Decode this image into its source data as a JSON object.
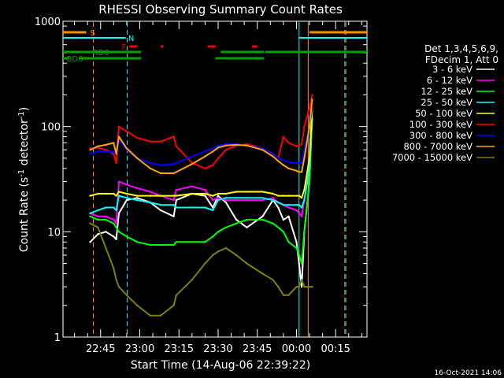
{
  "chart_data": {
    "type": "line",
    "title": "RHESSI Observing Summary Count Rates",
    "xlabel": "Start Time (14-Aug-06 22:39:22)",
    "ylabel_main": "Count Rate (s",
    "ylabel_sup1": "-1",
    "ylabel_mid": " detector",
    "ylabel_sup2": "-1",
    "ylabel_end": ")",
    "y_scale": "log",
    "ylim": [
      1,
      1000
    ],
    "xlim_min": [
      -14.4,
      102
    ],
    "x_ticks": [
      {
        "t": 0,
        "label": "22:45"
      },
      {
        "t": 15,
        "label": "23:00"
      },
      {
        "t": 30,
        "label": "23:15"
      },
      {
        "t": 45,
        "label": "23:30"
      },
      {
        "t": 60,
        "label": "23:45"
      },
      {
        "t": 75,
        "label": "00:00"
      },
      {
        "t": 90,
        "label": "00:15"
      }
    ],
    "y_ticks": [
      {
        "v": 1,
        "label": "1"
      },
      {
        "v": 10,
        "label": "10"
      },
      {
        "v": 100,
        "label": "100"
      },
      {
        "v": 1000,
        "label": "1000"
      }
    ],
    "legend_header": [
      "Det 1,3,4,5,6,9,",
      "FDecim 1, Att 0"
    ],
    "legend_placement": "right",
    "series": [
      {
        "name": "3 - 6 keV",
        "color": "#ffffff",
        "points": [
          [
            -4,
            8
          ],
          [
            -1,
            9.5
          ],
          [
            2,
            10
          ],
          [
            5,
            9
          ],
          [
            6,
            8.5
          ],
          [
            7,
            15
          ],
          [
            10,
            20
          ],
          [
            14,
            21
          ],
          [
            19,
            19
          ],
          [
            23,
            16
          ],
          [
            28,
            14
          ],
          [
            29,
            20
          ],
          [
            35,
            23
          ],
          [
            40,
            22
          ],
          [
            43,
            17
          ],
          [
            45,
            22
          ],
          [
            48,
            19
          ],
          [
            52,
            13
          ],
          [
            56,
            11
          ],
          [
            62,
            14
          ],
          [
            66,
            20
          ],
          [
            68,
            17
          ],
          [
            70,
            13
          ],
          [
            72,
            14
          ],
          [
            75,
            8
          ],
          [
            76,
            5
          ],
          [
            77,
            3
          ],
          [
            78,
            10
          ],
          [
            80,
            30
          ],
          [
            81,
            150
          ]
        ]
      },
      {
        "name": "6 - 12 keV",
        "color": "#ff00ff",
        "points": [
          [
            -4,
            15
          ],
          [
            -1,
            14
          ],
          [
            2,
            14
          ],
          [
            5,
            13
          ],
          [
            6,
            12
          ],
          [
            7,
            30
          ],
          [
            10,
            28
          ],
          [
            14,
            26
          ],
          [
            19,
            24
          ],
          [
            23,
            22
          ],
          [
            28,
            20
          ],
          [
            29,
            25
          ],
          [
            35,
            27
          ],
          [
            40,
            25
          ],
          [
            43,
            20
          ],
          [
            45,
            21
          ],
          [
            48,
            20
          ],
          [
            52,
            20
          ],
          [
            56,
            20
          ],
          [
            62,
            20
          ],
          [
            66,
            21
          ],
          [
            68,
            19
          ],
          [
            70,
            18
          ],
          [
            72,
            17
          ],
          [
            75,
            16
          ],
          [
            76,
            15
          ],
          [
            77,
            14
          ],
          [
            78,
            20
          ],
          [
            80,
            40
          ],
          [
            81,
            150
          ]
        ]
      },
      {
        "name": "12 - 25 keV",
        "color": "#00ff00",
        "points": [
          [
            -4,
            14
          ],
          [
            -1,
            13
          ],
          [
            2,
            13
          ],
          [
            5,
            12
          ],
          [
            6,
            11
          ],
          [
            7,
            10
          ],
          [
            10,
            9
          ],
          [
            14,
            8
          ],
          [
            19,
            7.5
          ],
          [
            23,
            7.5
          ],
          [
            28,
            7.5
          ],
          [
            29,
            8
          ],
          [
            35,
            8
          ],
          [
            40,
            8
          ],
          [
            43,
            9
          ],
          [
            45,
            10
          ],
          [
            48,
            11
          ],
          [
            52,
            12
          ],
          [
            56,
            13
          ],
          [
            62,
            13
          ],
          [
            66,
            12
          ],
          [
            68,
            11
          ],
          [
            70,
            10
          ],
          [
            72,
            8
          ],
          [
            75,
            7
          ],
          [
            76,
            6
          ],
          [
            77,
            5
          ],
          [
            78,
            10
          ],
          [
            80,
            30
          ],
          [
            81,
            120
          ]
        ]
      },
      {
        "name": "25 - 50 keV",
        "color": "#00ffff",
        "points": [
          [
            -4,
            15
          ],
          [
            -1,
            16
          ],
          [
            2,
            17
          ],
          [
            5,
            17
          ],
          [
            6,
            16
          ],
          [
            7,
            22
          ],
          [
            10,
            21
          ],
          [
            14,
            20
          ],
          [
            19,
            19
          ],
          [
            23,
            18
          ],
          [
            28,
            18
          ],
          [
            29,
            17
          ],
          [
            35,
            17
          ],
          [
            40,
            17
          ],
          [
            43,
            16
          ],
          [
            45,
            20
          ],
          [
            48,
            21
          ],
          [
            52,
            21
          ],
          [
            56,
            21
          ],
          [
            62,
            21
          ],
          [
            66,
            20
          ],
          [
            68,
            19
          ],
          [
            70,
            18
          ],
          [
            72,
            18
          ],
          [
            75,
            18
          ],
          [
            76,
            18
          ],
          [
            77,
            17
          ],
          [
            78,
            20
          ],
          [
            80,
            40
          ],
          [
            81,
            120
          ]
        ]
      },
      {
        "name": "50 - 100 keV",
        "color": "#ffff00",
        "points": [
          [
            -4,
            22
          ],
          [
            -1,
            23
          ],
          [
            2,
            23
          ],
          [
            5,
            23
          ],
          [
            6,
            22
          ],
          [
            7,
            24
          ],
          [
            10,
            23
          ],
          [
            14,
            22
          ],
          [
            19,
            22
          ],
          [
            23,
            22
          ],
          [
            28,
            22
          ],
          [
            29,
            22
          ],
          [
            35,
            23
          ],
          [
            40,
            23
          ],
          [
            43,
            22
          ],
          [
            45,
            23
          ],
          [
            48,
            23
          ],
          [
            52,
            24
          ],
          [
            56,
            24
          ],
          [
            62,
            24
          ],
          [
            66,
            23
          ],
          [
            68,
            22
          ],
          [
            70,
            22
          ],
          [
            72,
            22
          ],
          [
            75,
            22
          ],
          [
            76,
            22
          ],
          [
            77,
            21
          ],
          [
            78,
            25
          ],
          [
            80,
            50
          ],
          [
            81,
            150
          ]
        ]
      },
      {
        "name": "100 - 300 keV",
        "color": "#ff0000",
        "points": [
          [
            -4,
            62
          ],
          [
            -1,
            63
          ],
          [
            2,
            60
          ],
          [
            5,
            55
          ],
          [
            6,
            45
          ],
          [
            7,
            100
          ],
          [
            10,
            90
          ],
          [
            14,
            78
          ],
          [
            19,
            72
          ],
          [
            23,
            72
          ],
          [
            28,
            80
          ],
          [
            29,
            65
          ],
          [
            35,
            45
          ],
          [
            40,
            40
          ],
          [
            43,
            43
          ],
          [
            45,
            50
          ],
          [
            48,
            60
          ],
          [
            52,
            66
          ],
          [
            56,
            68
          ],
          [
            62,
            62
          ],
          [
            66,
            55
          ],
          [
            68,
            50
          ],
          [
            70,
            80
          ],
          [
            72,
            70
          ],
          [
            75,
            65
          ],
          [
            76,
            66
          ],
          [
            77,
            68
          ],
          [
            78,
            100
          ],
          [
            80,
            150
          ],
          [
            81,
            200
          ]
        ]
      },
      {
        "name": "300 - 800 keV",
        "color": "#0000ff",
        "points": [
          [
            -4,
            55
          ],
          [
            -1,
            58
          ],
          [
            2,
            58
          ],
          [
            5,
            57
          ],
          [
            6,
            55
          ],
          [
            7,
            75
          ],
          [
            10,
            60
          ],
          [
            14,
            50
          ],
          [
            19,
            45
          ],
          [
            23,
            43
          ],
          [
            28,
            44
          ],
          [
            29,
            45
          ],
          [
            35,
            52
          ],
          [
            40,
            58
          ],
          [
            43,
            62
          ],
          [
            45,
            66
          ],
          [
            48,
            68
          ],
          [
            52,
            68
          ],
          [
            56,
            66
          ],
          [
            62,
            62
          ],
          [
            66,
            55
          ],
          [
            68,
            50
          ],
          [
            70,
            48
          ],
          [
            72,
            46
          ],
          [
            75,
            45
          ],
          [
            76,
            45
          ],
          [
            77,
            45
          ],
          [
            78,
            60
          ],
          [
            80,
            100
          ],
          [
            81,
            150
          ]
        ]
      },
      {
        "name": "800 - 7000 keV",
        "color": "#ffa500",
        "points": [
          [
            -4,
            60
          ],
          [
            -1,
            65
          ],
          [
            2,
            67
          ],
          [
            5,
            70
          ],
          [
            6,
            55
          ],
          [
            7,
            80
          ],
          [
            10,
            62
          ],
          [
            14,
            50
          ],
          [
            19,
            40
          ],
          [
            23,
            36
          ],
          [
            28,
            36
          ],
          [
            29,
            37
          ],
          [
            35,
            44
          ],
          [
            40,
            52
          ],
          [
            43,
            58
          ],
          [
            45,
            63
          ],
          [
            48,
            66
          ],
          [
            52,
            67
          ],
          [
            56,
            66
          ],
          [
            62,
            60
          ],
          [
            66,
            52
          ],
          [
            68,
            47
          ],
          [
            70,
            43
          ],
          [
            72,
            40
          ],
          [
            75,
            38
          ],
          [
            76,
            37
          ],
          [
            77,
            37
          ],
          [
            78,
            50
          ],
          [
            80,
            100
          ],
          [
            81,
            180
          ]
        ]
      },
      {
        "name": "7000 - 15000 keV",
        "color": "#808000",
        "points": [
          [
            -4,
            12
          ],
          [
            -1,
            11
          ],
          [
            2,
            7
          ],
          [
            5,
            4.5
          ],
          [
            6,
            3.5
          ],
          [
            7,
            3
          ],
          [
            10,
            2.5
          ],
          [
            14,
            2
          ],
          [
            19,
            1.6
          ],
          [
            23,
            1.6
          ],
          [
            28,
            2
          ],
          [
            29,
            2.5
          ],
          [
            35,
            3.5
          ],
          [
            40,
            5
          ],
          [
            43,
            6
          ],
          [
            45,
            6.5
          ],
          [
            48,
            7
          ],
          [
            52,
            6
          ],
          [
            56,
            5
          ],
          [
            62,
            4
          ],
          [
            66,
            3.5
          ],
          [
            68,
            3
          ],
          [
            70,
            2.5
          ],
          [
            72,
            2.5
          ],
          [
            75,
            3
          ],
          [
            76,
            3
          ],
          [
            77,
            3.5
          ],
          [
            78,
            3
          ],
          [
            80,
            3
          ],
          [
            81,
            3
          ]
        ]
      }
    ],
    "state_bars": [
      {
        "name": "S",
        "color": "#ff8c00",
        "y_label": "S"
      },
      {
        "name": "N",
        "color": "#00ffff",
        "y_label": "N"
      },
      {
        "name": "F",
        "color": "#ff0000",
        "y_label": "F"
      },
      {
        "name": "RD0",
        "color": "#00a000",
        "y_label": "RD0"
      },
      {
        "name": "BD6",
        "color": "#00a000",
        "y_label": "BD6"
      }
    ],
    "vertical_markers": [
      {
        "t": -2.8,
        "color": "#ff8c00",
        "style": "dashed"
      },
      {
        "t": 10.2,
        "color": "#00ffff",
        "style": "dashed"
      },
      {
        "t": 76,
        "color": "#00ffff",
        "style": "solid"
      },
      {
        "t": 79.5,
        "color": "#ff8c00",
        "style": "solid"
      },
      {
        "t": 93.5,
        "color": "#ff8c00",
        "style": "dashed"
      },
      {
        "t": 93.9,
        "color": "#00ffff",
        "style": "dashed"
      }
    ]
  },
  "timestamp": "16-Oct-2021 14:06"
}
